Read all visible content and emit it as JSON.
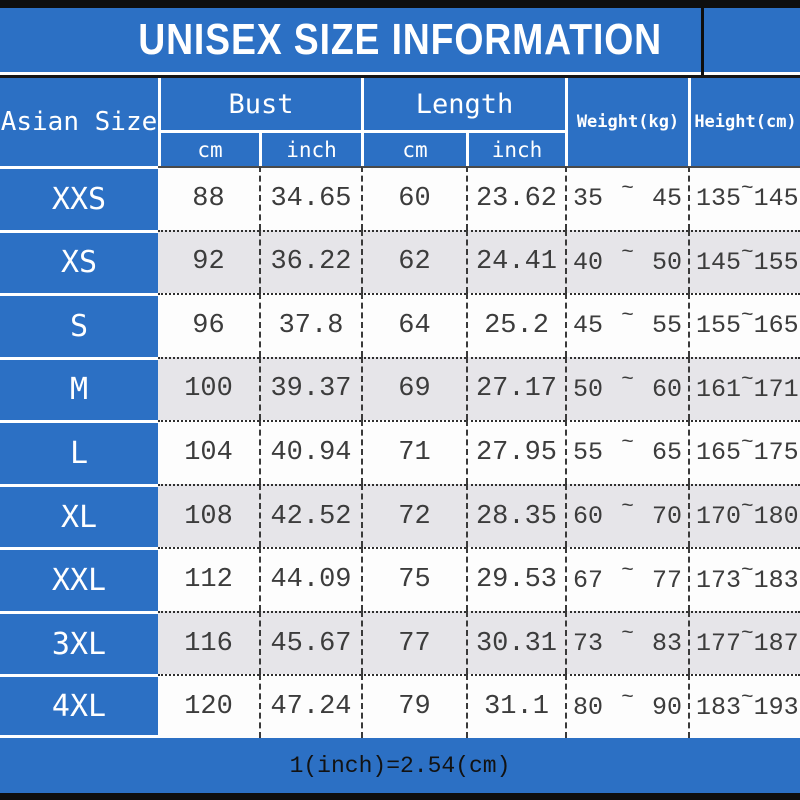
{
  "title": "UNISEX SIZE INFORMATION",
  "footer_note": "1(inch)=2.54(cm)",
  "tilde": "~",
  "header": {
    "size_column": "Asian Size",
    "bust": {
      "label": "Bust",
      "sub": [
        "cm",
        "inch"
      ]
    },
    "length": {
      "label": "Length",
      "sub": [
        "cm",
        "inch"
      ]
    },
    "weight": "Weight(kg)",
    "height": "Height(cm)"
  },
  "rows": [
    {
      "size": "XXS",
      "bust_cm": "88",
      "bust_inch": "34.65",
      "length_cm": "60",
      "length_inch": "23.62",
      "weight_min": "35",
      "weight_max": "45",
      "height_min": "135",
      "height_max": "145"
    },
    {
      "size": "XS",
      "bust_cm": "92",
      "bust_inch": "36.22",
      "length_cm": "62",
      "length_inch": "24.41",
      "weight_min": "40",
      "weight_max": "50",
      "height_min": "145",
      "height_max": "155"
    },
    {
      "size": "S",
      "bust_cm": "96",
      "bust_inch": "37.8",
      "length_cm": "64",
      "length_inch": "25.2",
      "weight_min": "45",
      "weight_max": "55",
      "height_min": "155",
      "height_max": "165"
    },
    {
      "size": "M",
      "bust_cm": "100",
      "bust_inch": "39.37",
      "length_cm": "69",
      "length_inch": "27.17",
      "weight_min": "50",
      "weight_max": "60",
      "height_min": "161",
      "height_max": "171"
    },
    {
      "size": "L",
      "bust_cm": "104",
      "bust_inch": "40.94",
      "length_cm": "71",
      "length_inch": "27.95",
      "weight_min": "55",
      "weight_max": "65",
      "height_min": "165",
      "height_max": "175"
    },
    {
      "size": "XL",
      "bust_cm": "108",
      "bust_inch": "42.52",
      "length_cm": "72",
      "length_inch": "28.35",
      "weight_min": "60",
      "weight_max": "70",
      "height_min": "170",
      "height_max": "180"
    },
    {
      "size": "XXL",
      "bust_cm": "112",
      "bust_inch": "44.09",
      "length_cm": "75",
      "length_inch": "29.53",
      "weight_min": "67",
      "weight_max": "77",
      "height_min": "173",
      "height_max": "183"
    },
    {
      "size": "3XL",
      "bust_cm": "116",
      "bust_inch": "45.67",
      "length_cm": "77",
      "length_inch": "30.31",
      "weight_min": "73",
      "weight_max": "83",
      "height_min": "177",
      "height_max": "187"
    },
    {
      "size": "4XL",
      "bust_cm": "120",
      "bust_inch": "47.24",
      "length_cm": "79",
      "length_inch": "31.1",
      "weight_min": "80",
      "weight_max": "90",
      "height_min": "183",
      "height_max": "193"
    }
  ],
  "colors": {
    "blue": "#2c70c4",
    "bar": "#0e0e0e",
    "gray_row": "#e6e5e9",
    "white_row": "#fdfdfd",
    "ink": "#3c3c3c"
  },
  "chart_data": {
    "type": "table",
    "title": "UNISEX SIZE INFORMATION",
    "columns": [
      "Asian Size",
      "Bust cm",
      "Bust inch",
      "Length cm",
      "Length inch",
      "Weight(kg)",
      "Height(cm)"
    ],
    "rows": [
      [
        "XXS",
        88,
        34.65,
        60,
        23.62,
        "35~45",
        "135~145"
      ],
      [
        "XS",
        92,
        36.22,
        62,
        24.41,
        "40~50",
        "145~155"
      ],
      [
        "S",
        96,
        37.8,
        64,
        25.2,
        "45~55",
        "155~165"
      ],
      [
        "M",
        100,
        39.37,
        69,
        27.17,
        "50~60",
        "161~171"
      ],
      [
        "L",
        104,
        40.94,
        71,
        27.95,
        "55~65",
        "165~175"
      ],
      [
        "XL",
        108,
        42.52,
        72,
        28.35,
        "60~70",
        "170~180"
      ],
      [
        "XXL",
        112,
        44.09,
        75,
        29.53,
        "67~77",
        "173~183"
      ],
      [
        "3XL",
        116,
        45.67,
        77,
        30.31,
        "73~83",
        "177~187"
      ],
      [
        "4XL",
        120,
        47.24,
        79,
        31.1,
        "80~90",
        "183~193"
      ]
    ],
    "note": "1(inch)=2.54(cm)"
  }
}
